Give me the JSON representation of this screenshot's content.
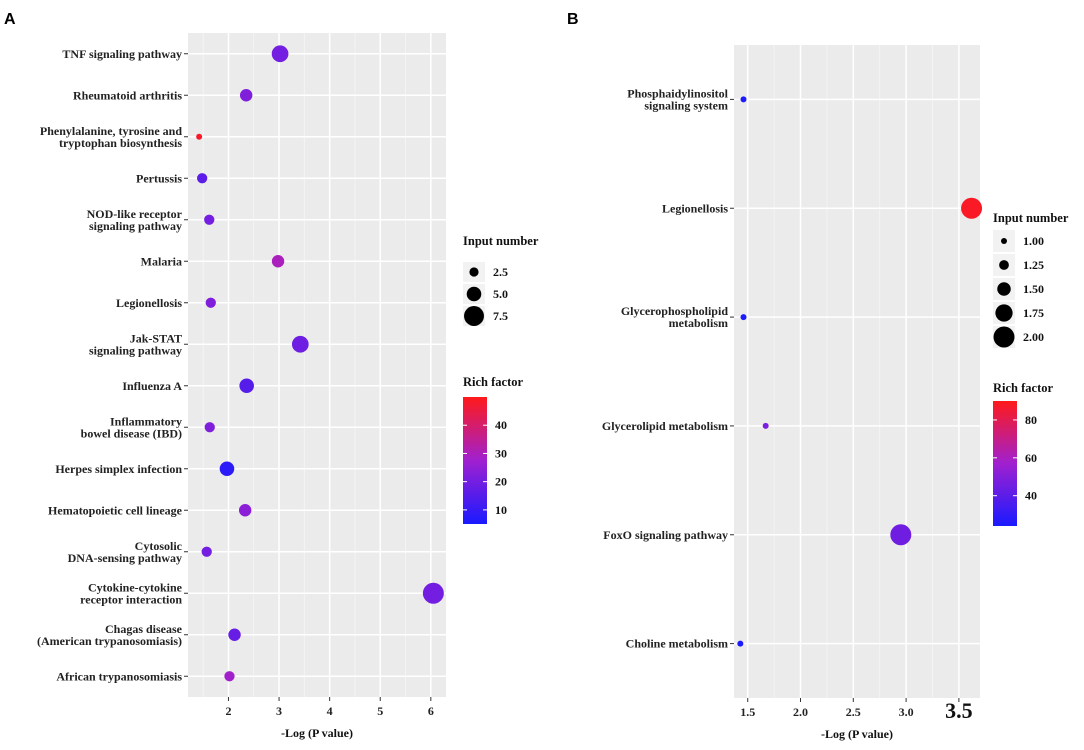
{
  "chart_data": [
    {
      "panel_label": "A",
      "type": "scatter",
      "subtype": "bubble",
      "xlabel": "-Log (P value)",
      "xlim": [
        1.2,
        6.3
      ],
      "xticks": [
        2,
        3,
        4,
        5,
        6
      ],
      "xtick_labels": [
        "2",
        "3",
        "4",
        "5",
        "6"
      ],
      "categories": [
        {
          "label": [
            "TNF signaling pathway"
          ],
          "x": 3.02,
          "size": 6,
          "rich": 20
        },
        {
          "label": [
            "Rheumatoid arthritis"
          ],
          "x": 2.35,
          "size": 4,
          "rich": 22
        },
        {
          "label": [
            "Phenylalanine, tyrosine and",
            "tryptophan biosynthesis"
          ],
          "x": 1.42,
          "size": 1,
          "rich": 48
        },
        {
          "label": [
            "Pertussis"
          ],
          "x": 1.48,
          "size": 3,
          "rich": 16
        },
        {
          "label": [
            "NOD-like receptor",
            "signaling pathway"
          ],
          "x": 1.62,
          "size": 3,
          "rich": 20
        },
        {
          "label": [
            "Malaria"
          ],
          "x": 2.98,
          "size": 4,
          "rich": 30
        },
        {
          "label": [
            "Legionellosis"
          ],
          "x": 1.65,
          "size": 3,
          "rich": 22
        },
        {
          "label": [
            "Jak-STAT",
            "signaling pathway"
          ],
          "x": 3.42,
          "size": 6,
          "rich": 19
        },
        {
          "label": [
            "Influenza A"
          ],
          "x": 2.36,
          "size": 5,
          "rich": 15
        },
        {
          "label": [
            "Inflammatory",
            "bowel disease (IBD)"
          ],
          "x": 1.63,
          "size": 3,
          "rich": 22
        },
        {
          "label": [
            "Herpes simplex infection"
          ],
          "x": 1.97,
          "size": 5,
          "rich": 8
        },
        {
          "label": [
            "Hematopoietic cell lineage"
          ],
          "x": 2.33,
          "size": 4,
          "rich": 24
        },
        {
          "label": [
            "Cytosolic",
            "DNA-sensing pathway"
          ],
          "x": 1.57,
          "size": 3,
          "rich": 20
        },
        {
          "label": [
            "Cytokine-cytokine",
            "receptor interaction"
          ],
          "x": 6.05,
          "size": 8,
          "rich": 20
        },
        {
          "label": [
            "Chagas disease",
            "(American trypanosomiasis)"
          ],
          "x": 2.12,
          "size": 4,
          "rich": 18
        },
        {
          "label": [
            "African trypanosomiasis"
          ],
          "x": 2.02,
          "size": 3,
          "rich": 28
        }
      ],
      "legend_size": {
        "title": "Input number",
        "values": [
          2.5,
          5.0,
          7.5
        ],
        "labels": [
          "2.5",
          "5.0",
          "7.5"
        ]
      },
      "legend_color": {
        "title": "Rich factor",
        "min": 5,
        "max": 50,
        "ticks": [
          10,
          20,
          30,
          40
        ],
        "labels": [
          "10",
          "20",
          "30",
          "40"
        ],
        "color_low": "#1a1aff",
        "color_mid": "#a020d0",
        "color_high": "#ff1a1a"
      }
    },
    {
      "panel_label": "B",
      "type": "scatter",
      "subtype": "bubble",
      "xlabel": "-Log (P value)",
      "xlim": [
        1.37,
        3.7
      ],
      "xticks": [
        1.5,
        2.0,
        2.5,
        3.0,
        3.5
      ],
      "xtick_labels": [
        "1.5",
        "2.0",
        "2.5",
        "3.0",
        "3.5"
      ],
      "categories": [
        {
          "label": [
            "Phosphaidylinositol",
            "signaling system"
          ],
          "x": 1.46,
          "size": 1,
          "rich": 25
        },
        {
          "label": [
            "Legionellosis"
          ],
          "x": 3.62,
          "size": 2,
          "rich": 88
        },
        {
          "label": [
            "Glycerophospholipid",
            "metabolism"
          ],
          "x": 1.46,
          "size": 1,
          "rich": 25
        },
        {
          "label": [
            "Glycerolipid metabolism"
          ],
          "x": 1.67,
          "size": 1,
          "rich": 48
        },
        {
          "label": [
            "FoxO signaling pathway"
          ],
          "x": 2.95,
          "size": 2,
          "rich": 45
        },
        {
          "label": [
            "Choline metabolism"
          ],
          "x": 1.43,
          "size": 1,
          "rich": 25
        }
      ],
      "legend_size": {
        "title": "Input number",
        "values": [
          1.0,
          1.25,
          1.5,
          1.75,
          2.0
        ],
        "labels": [
          "1.00",
          "1.25",
          "1.50",
          "1.75",
          "2.00"
        ]
      },
      "legend_color": {
        "title": "Rich factor",
        "min": 24,
        "max": 90,
        "ticks": [
          40,
          60,
          80
        ],
        "labels": [
          "40",
          "60",
          "80"
        ],
        "color_low": "#1a1aff",
        "color_mid": "#a020d0",
        "color_high": "#ff1a1a"
      }
    }
  ]
}
